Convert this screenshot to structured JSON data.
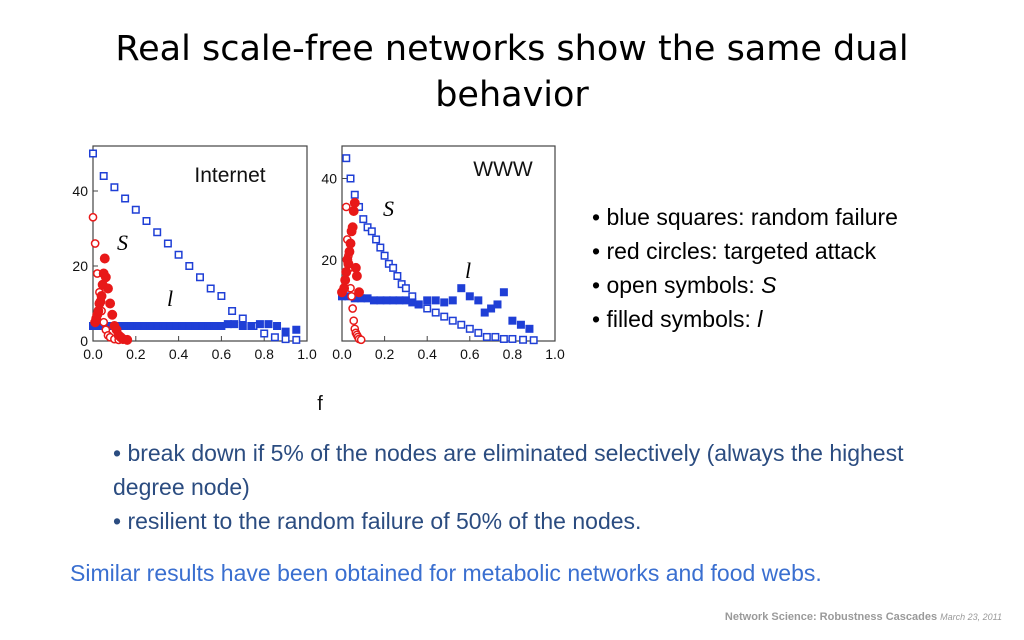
{
  "slide": {
    "title": "Real scale-free networks show the same dual behavior",
    "legend": [
      "• blue squares: random failure",
      "• red circles: targeted attack"
    ],
    "legend_open": {
      "prefix": "• open symbols: ",
      "sym": "S"
    },
    "legend_filled": {
      "prefix": "• filled symbols: ",
      "sym": "l"
    },
    "notes": [
      "• break down if 5% of the nodes are eliminated selectively (always the highest degree node)",
      "• resilient to the random failure of 50% of the nodes."
    ],
    "summary": "Similar results have been obtained for metabolic networks and food webs.",
    "footer": {
      "text": "Network Science: Robustness Cascades",
      "date": "March 23, 2011"
    }
  },
  "chart_data": [
    {
      "type": "scatter",
      "title": "Internet",
      "xlabel": "f",
      "xlim": [
        0,
        1.0
      ],
      "ylim": [
        0,
        52
      ],
      "xticks": [
        "0.0",
        "0.2",
        "0.4",
        "0.6",
        "0.8",
        "1.0"
      ],
      "yticks": [
        "0",
        "20",
        "40"
      ],
      "curve_labels": {
        "S": "S",
        "l": "l"
      },
      "series": [
        {
          "marker": "square",
          "color": "#1f3fd6",
          "filled": false,
          "x": [
            0.0,
            0.05,
            0.1,
            0.15,
            0.2,
            0.25,
            0.3,
            0.35,
            0.4,
            0.45,
            0.5,
            0.55,
            0.6,
            0.65,
            0.7,
            0.75,
            0.8,
            0.85,
            0.9,
            0.95
          ],
          "y": [
            50,
            44,
            41,
            38,
            35,
            32,
            29,
            26,
            23,
            20,
            17,
            14,
            12,
            8,
            6,
            4,
            2,
            1,
            0.5,
            0.3
          ]
        },
        {
          "marker": "square",
          "color": "#1f3fd6",
          "filled": true,
          "x": [
            0.0,
            0.03,
            0.06,
            0.09,
            0.12,
            0.15,
            0.18,
            0.21,
            0.24,
            0.27,
            0.3,
            0.33,
            0.36,
            0.39,
            0.42,
            0.45,
            0.48,
            0.51,
            0.54,
            0.57,
            0.6,
            0.63,
            0.66,
            0.7,
            0.74,
            0.78,
            0.82,
            0.86,
            0.9,
            0.95
          ],
          "y": [
            4,
            4,
            4,
            4,
            4,
            4,
            4,
            4,
            4,
            4,
            4,
            4,
            4,
            4,
            4,
            4,
            4,
            4,
            4,
            4,
            4,
            4.5,
            4.5,
            4,
            4,
            4.5,
            4.5,
            4,
            2.5,
            3
          ]
        },
        {
          "marker": "circle",
          "color": "#e81919",
          "filled": false,
          "x": [
            0.0,
            0.01,
            0.02,
            0.03,
            0.04,
            0.05,
            0.06,
            0.07,
            0.08,
            0.1,
            0.12
          ],
          "y": [
            33,
            26,
            18,
            13,
            8,
            5,
            3,
            1.5,
            1,
            0.5,
            0.3
          ]
        },
        {
          "marker": "circle",
          "color": "#e81919",
          "filled": true,
          "x": [
            0.01,
            0.015,
            0.02,
            0.025,
            0.03,
            0.035,
            0.04,
            0.045,
            0.05,
            0.055,
            0.06,
            0.07,
            0.08,
            0.09,
            0.1,
            0.11,
            0.12,
            0.13,
            0.14,
            0.16
          ],
          "y": [
            5,
            6,
            7,
            8,
            10,
            10.5,
            12,
            15,
            18,
            22,
            17,
            14,
            10,
            7,
            4,
            3,
            1.5,
            1,
            0.5,
            0.3
          ]
        }
      ]
    },
    {
      "type": "scatter",
      "title": "WWW",
      "xlabel": "f",
      "xlim": [
        0,
        1.0
      ],
      "ylim": [
        0,
        48
      ],
      "xticks": [
        "0.0",
        "0.2",
        "0.4",
        "0.6",
        "0.8",
        "1.0"
      ],
      "yticks": [
        "20",
        "40"
      ],
      "curve_labels": {
        "S": "S",
        "l": "l"
      },
      "series": [
        {
          "marker": "square",
          "color": "#1f3fd6",
          "filled": false,
          "x": [
            0.02,
            0.04,
            0.06,
            0.08,
            0.1,
            0.12,
            0.14,
            0.16,
            0.18,
            0.2,
            0.22,
            0.24,
            0.26,
            0.28,
            0.3,
            0.33,
            0.36,
            0.4,
            0.44,
            0.48,
            0.52,
            0.56,
            0.6,
            0.64,
            0.68,
            0.72,
            0.76,
            0.8,
            0.85,
            0.9
          ],
          "y": [
            45,
            40,
            36,
            33,
            30,
            28,
            27,
            25,
            23,
            21,
            19,
            18,
            16,
            14,
            13,
            11,
            9,
            8,
            7,
            6,
            5,
            4,
            3,
            2,
            1,
            1,
            0.5,
            0.5,
            0.3,
            0.2
          ]
        },
        {
          "marker": "square",
          "color": "#1f3fd6",
          "filled": true,
          "x": [
            0.0,
            0.03,
            0.06,
            0.09,
            0.12,
            0.15,
            0.18,
            0.21,
            0.24,
            0.27,
            0.3,
            0.33,
            0.36,
            0.4,
            0.44,
            0.48,
            0.52,
            0.56,
            0.6,
            0.64,
            0.67,
            0.7,
            0.73,
            0.76,
            0.8,
            0.84,
            0.88
          ],
          "y": [
            11,
            11,
            10.5,
            10.5,
            10.5,
            10,
            10,
            10,
            10,
            10,
            10,
            9.5,
            9,
            10,
            10,
            9.5,
            10,
            13,
            11,
            10,
            7,
            8,
            9,
            12,
            5,
            4,
            3
          ]
        },
        {
          "marker": "circle",
          "color": "#e81919",
          "filled": false,
          "x": [
            0.02,
            0.025,
            0.03,
            0.035,
            0.04,
            0.045,
            0.05,
            0.055,
            0.06,
            0.065,
            0.07,
            0.075,
            0.08,
            0.09
          ],
          "y": [
            33,
            25,
            21,
            18,
            13,
            11,
            8,
            5,
            3,
            2,
            1.5,
            1,
            0.5,
            0.3
          ]
        },
        {
          "marker": "circle",
          "color": "#e81919",
          "filled": true,
          "x": [
            0.0,
            0.01,
            0.015,
            0.02,
            0.025,
            0.03,
            0.035,
            0.04,
            0.045,
            0.05,
            0.055,
            0.06,
            0.065,
            0.07,
            0.08
          ],
          "y": [
            12,
            13,
            15,
            17,
            20,
            19,
            22,
            24,
            27,
            28,
            32,
            34,
            18,
            16,
            12
          ]
        }
      ]
    }
  ]
}
